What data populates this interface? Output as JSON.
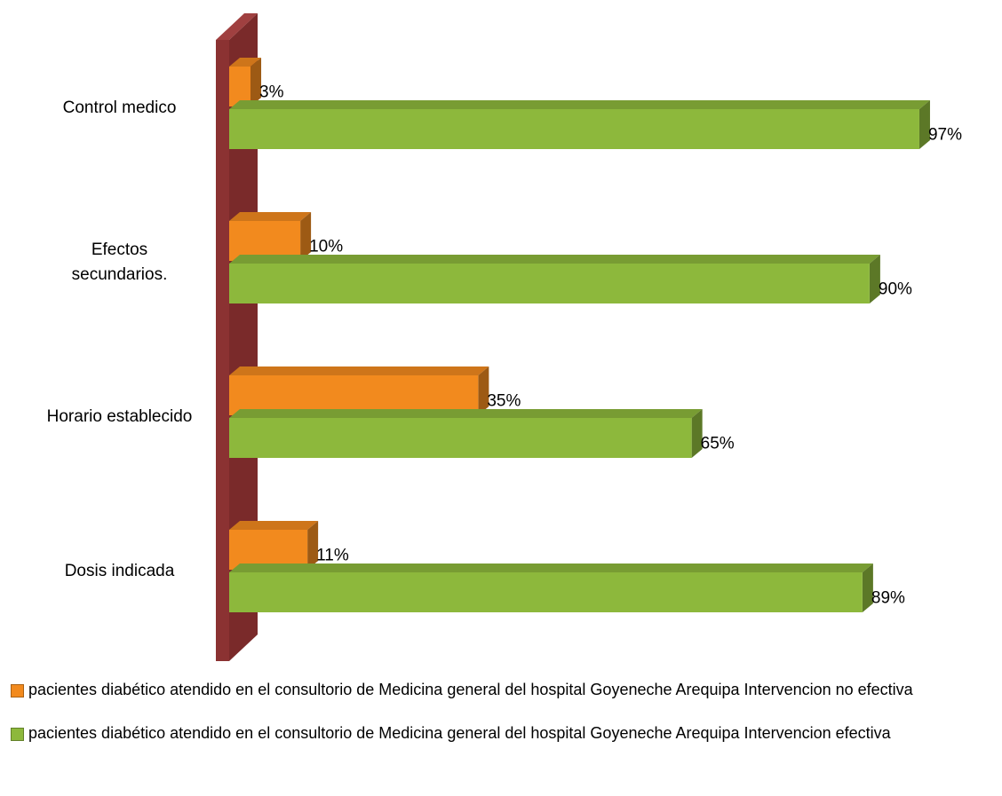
{
  "chart_data": {
    "type": "bar3d_horizontal",
    "categories": [
      "Control medico",
      "Efectos secundarios.",
      "Horario establecido",
      "Dosis indicada"
    ],
    "series": [
      {
        "name": "pacientes diabético atendido en el consultorio de Medicina general del hospital Goyeneche Arequipa Intervencion no efectiva",
        "color": "#f28a1e",
        "values": [
          3,
          10,
          35,
          11
        ],
        "value_labels": [
          "3%",
          "10%",
          "35%",
          "11%"
        ]
      },
      {
        "name": "pacientes diabético atendido en el consultorio de Medicina general del hospital Goyeneche Arequipa Intervencion efectiva",
        "color": "#8db83c",
        "values": [
          97,
          90,
          65,
          89
        ],
        "value_labels": [
          "97%",
          "90%",
          "65%",
          "89%"
        ]
      }
    ],
    "xlim": [
      0,
      100
    ],
    "legend": "bottom"
  }
}
